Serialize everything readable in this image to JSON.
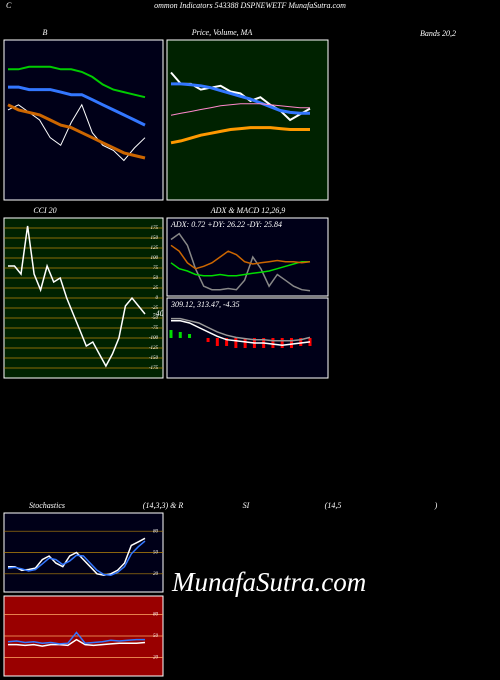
{
  "header": {
    "letter": "C",
    "text": "ommon Indicators 543388 DSPNEWETF MunafaSutra.com"
  },
  "watermark": "MunafaSutra.com",
  "bands_label": "Bands 20,2",
  "bottom_title": [
    "Stochastics",
    "(14,3,3) & R",
    "SI",
    "(14,5",
    ")"
  ],
  "panels": [
    {
      "type": "line",
      "label": "B",
      "ylim": [
        280,
        340
      ],
      "series": [
        {
          "color": "#00cc00",
          "values": [
            330,
            330,
            331,
            331,
            331,
            330,
            330,
            329,
            327,
            324,
            322,
            321,
            320,
            319
          ]
        },
        {
          "color": "#3377ff",
          "values": [
            323,
            323,
            322,
            322,
            322,
            321,
            320,
            320,
            318,
            316,
            314,
            312,
            310,
            308
          ]
        },
        {
          "color": "#ffffff",
          "values": [
            314,
            316,
            313,
            310,
            303,
            300,
            309,
            316,
            305,
            300,
            298,
            294,
            299,
            303
          ]
        },
        {
          "color": "#cc6600",
          "values": [
            316,
            314,
            313,
            312,
            310,
            308,
            307,
            305,
            303,
            301,
            299,
            297,
            296,
            295
          ]
        }
      ]
    },
    {
      "type": "line",
      "label": "Price, Volume, MA",
      "ylim": [
        200,
        360
      ],
      "series": [
        {
          "color": "#ffffff",
          "values": [
            330,
            318,
            318,
            312,
            314,
            316,
            310,
            308,
            300,
            304,
            296,
            290,
            280,
            286,
            292
          ]
        },
        {
          "color": "#3377ff",
          "values": [
            318,
            318,
            317,
            316,
            314,
            311,
            308,
            305,
            302,
            298,
            294,
            290,
            288,
            287,
            287
          ]
        },
        {
          "color": "#ff88cc",
          "values": [
            285,
            287,
            289,
            291,
            293,
            295,
            296,
            297,
            297,
            297,
            296,
            295,
            294,
            293,
            293
          ]
        },
        {
          "color": "#ff9900",
          "values": [
            256,
            258,
            261,
            264,
            266,
            268,
            270,
            271,
            272,
            272,
            272,
            271,
            270,
            270,
            270
          ]
        }
      ]
    },
    {
      "type": "line",
      "label": "CCI 20",
      "ylim": [
        -190,
        190
      ],
      "yticks": [
        175,
        150,
        125,
        100,
        75,
        50,
        25,
        0,
        -25,
        -50,
        -75,
        -100,
        -125,
        -150,
        -175
      ],
      "series": [
        {
          "color": "#ffffff",
          "values": [
            80,
            80,
            60,
            180,
            60,
            20,
            80,
            40,
            50,
            0,
            -40,
            -80,
            -120,
            -110,
            -140,
            -170,
            -140,
            -100,
            -20,
            0,
            -20,
            -40
          ]
        }
      ]
    },
    {
      "type": "line",
      "label": "ADX  & MACD 12,26,9",
      "info": "ADX: 0.72  +DY: 26.22  -DY: 25.84",
      "ylim": [
        0,
        60
      ],
      "series": [
        {
          "color": "#888888",
          "values": [
            45,
            50,
            40,
            20,
            5,
            2,
            2,
            3,
            2,
            10,
            30,
            20,
            5,
            15,
            10,
            5,
            2,
            1
          ]
        },
        {
          "color": "#00dd00",
          "values": [
            25,
            20,
            18,
            15,
            14,
            14,
            15,
            14,
            14,
            15,
            16,
            17,
            18,
            20,
            22,
            24,
            26,
            26
          ]
        },
        {
          "color": "#cc6600",
          "values": [
            40,
            35,
            25,
            20,
            22,
            25,
            30,
            35,
            32,
            26,
            24,
            25,
            26,
            27,
            26,
            26,
            25,
            26
          ]
        }
      ]
    },
    {
      "type": "macd",
      "info": "309.12,  313.47,  -4.35",
      "ylim": [
        280,
        345
      ],
      "hist_ylim": [
        -20,
        20
      ],
      "histogram": [
        4,
        3,
        2,
        0,
        -2,
        -4,
        -4,
        -5,
        -5,
        -5,
        -5,
        -5,
        -5,
        -5,
        -4,
        -4
      ],
      "series": [
        {
          "color": "#ffffff",
          "values": [
            328,
            328,
            326,
            322,
            318,
            314,
            311,
            310,
            309,
            308,
            308,
            307,
            306,
            307,
            308,
            309
          ]
        },
        {
          "color": "#999999",
          "values": [
            330,
            330,
            328,
            326,
            322,
            318,
            315,
            313,
            312,
            311,
            311,
            310,
            310,
            310,
            311,
            313
          ]
        }
      ]
    },
    {
      "type": "line",
      "ylim": [
        0,
        100
      ],
      "yticks": [
        80,
        50,
        20
      ],
      "series": [
        {
          "color": "#ffffff",
          "values": [
            30,
            30,
            25,
            26,
            28,
            40,
            45,
            35,
            30,
            45,
            50,
            40,
            30,
            20,
            18,
            20,
            25,
            35,
            60,
            65,
            70
          ]
        },
        {
          "color": "#3377ff",
          "values": [
            28,
            29,
            27,
            24,
            26,
            34,
            42,
            40,
            33,
            38,
            46,
            45,
            35,
            25,
            19,
            18,
            22,
            30,
            48,
            58,
            66
          ]
        }
      ]
    },
    {
      "type": "line",
      "ylim": [
        0,
        100
      ],
      "yticks": [
        80,
        50,
        20
      ],
      "series": [
        {
          "color": "#ffffff",
          "values": [
            38,
            38,
            37,
            38,
            36,
            38,
            38,
            37,
            45,
            38,
            37,
            38,
            39,
            40,
            40,
            40,
            41
          ]
        },
        {
          "color": "#3377ff",
          "values": [
            42,
            43,
            41,
            42,
            40,
            41,
            39,
            40,
            55,
            40,
            41,
            42,
            44,
            43,
            44,
            45,
            45
          ]
        }
      ]
    }
  ]
}
